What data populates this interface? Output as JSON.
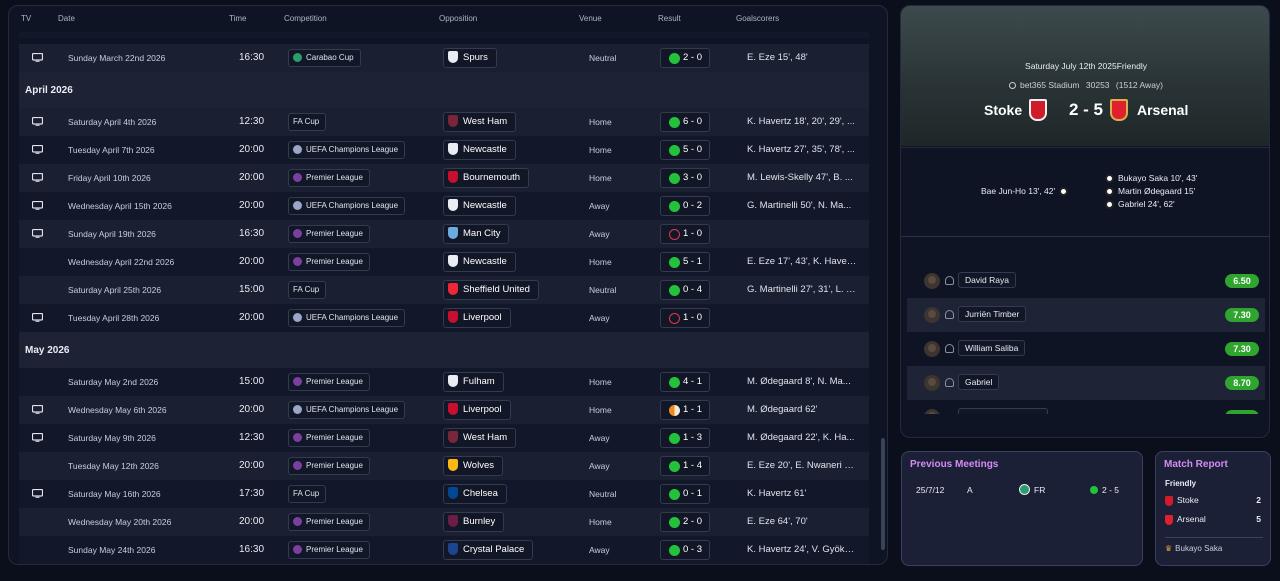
{
  "table": {
    "headers": {
      "tv": "TV",
      "date": "Date",
      "time": "Time",
      "competition": "Competition",
      "opposition": "Opposition",
      "venue": "Venue",
      "result": "Result",
      "goalscorers": "Goalscorers"
    },
    "first_row": {
      "date": "Sunday March 22nd 2026",
      "time": "16:30",
      "competition": "Carabao Cup",
      "opposition": "Spurs",
      "venue": "Neutral",
      "result": "2 - 0",
      "goals": "E. Eze 15', 48'"
    },
    "months": [
      "April 2026",
      "May 2026"
    ],
    "april": [
      {
        "tv": true,
        "date": "Saturday April 4th 2026",
        "time": "12:30",
        "competition": "FA Cup",
        "opposition": "West Ham",
        "venue": "Home",
        "result": "6 - 0",
        "outcome": "win",
        "goals": "K. Havertz 18', 20', 29', ..."
      },
      {
        "tv": true,
        "date": "Tuesday April 7th 2026",
        "time": "20:00",
        "competition": "UEFA Champions League",
        "opposition": "Newcastle",
        "venue": "Home",
        "result": "5 - 0",
        "outcome": "win",
        "goals": "K. Havertz 27', 35', 78', ..."
      },
      {
        "tv": true,
        "date": "Friday April 10th 2026",
        "time": "20:00",
        "competition": "Premier League",
        "opposition": "Bournemouth",
        "venue": "Home",
        "result": "3 - 0",
        "outcome": "win",
        "goals": "M. Lewis-Skelly 47', B. ..."
      },
      {
        "tv": true,
        "date": "Wednesday April 15th 2026",
        "time": "20:00",
        "competition": "UEFA Champions League",
        "opposition": "Newcastle",
        "venue": "Away",
        "result": "0 - 2",
        "outcome": "win",
        "goals": "G. Martinelli 50', N. Ma..."
      },
      {
        "tv": true,
        "date": "Sunday April 19th 2026",
        "time": "16:30",
        "competition": "Premier League",
        "opposition": "Man City",
        "venue": "Away",
        "result": "1 - 0",
        "outcome": "loss",
        "goals": ""
      },
      {
        "tv": false,
        "date": "Wednesday April 22nd 2026",
        "time": "20:00",
        "competition": "Premier League",
        "opposition": "Newcastle",
        "venue": "Home",
        "result": "5 - 1",
        "outcome": "win",
        "goals": "E. Eze 17', 43', K. Havert..."
      },
      {
        "tv": false,
        "date": "Saturday April 25th 2026",
        "time": "15:00",
        "competition": "FA Cup",
        "opposition": "Sheffield United",
        "venue": "Neutral",
        "result": "0 - 4",
        "outcome": "win",
        "goals": "G. Martinelli 27', 31', L. T..."
      },
      {
        "tv": true,
        "date": "Tuesday April 28th 2026",
        "time": "20:00",
        "competition": "UEFA Champions League",
        "opposition": "Liverpool",
        "venue": "Away",
        "result": "1 - 0",
        "outcome": "loss",
        "goals": ""
      }
    ],
    "may": [
      {
        "tv": false,
        "date": "Saturday May 2nd 2026",
        "time": "15:00",
        "competition": "Premier League",
        "opposition": "Fulham",
        "venue": "Home",
        "result": "4 - 1",
        "outcome": "win",
        "goals": "M. Ødegaard 8', N. Ma..."
      },
      {
        "tv": true,
        "date": "Wednesday May 6th 2026",
        "time": "20:00",
        "competition": "UEFA Champions League",
        "opposition": "Liverpool",
        "venue": "Home",
        "result": "1 - 1",
        "outcome": "draw",
        "goals": "M. Ødegaard 62'"
      },
      {
        "tv": true,
        "date": "Saturday May 9th 2026",
        "time": "12:30",
        "competition": "Premier League",
        "opposition": "West Ham",
        "venue": "Away",
        "result": "1 - 3",
        "outcome": "win",
        "goals": "M. Ødegaard 22', K. Ha..."
      },
      {
        "tv": false,
        "date": "Tuesday May 12th 2026",
        "time": "20:00",
        "competition": "Premier League",
        "opposition": "Wolves",
        "venue": "Away",
        "result": "1 - 4",
        "outcome": "win",
        "goals": "E. Eze 20', E. Nwaneri 4..."
      },
      {
        "tv": true,
        "date": "Saturday May 16th 2026",
        "time": "17:30",
        "competition": "FA Cup",
        "opposition": "Chelsea",
        "venue": "Neutral",
        "result": "0 - 1",
        "outcome": "win",
        "goals": "K. Havertz 61'"
      },
      {
        "tv": false,
        "date": "Wednesday May 20th 2026",
        "time": "20:00",
        "competition": "Premier League",
        "opposition": "Burnley",
        "venue": "Home",
        "result": "2 - 0",
        "outcome": "win",
        "goals": "E. Eze 64', 70'"
      },
      {
        "tv": false,
        "date": "Sunday May 24th 2026",
        "time": "16:30",
        "competition": "Premier League",
        "opposition": "Crystal Palace",
        "venue": "Away",
        "result": "0 - 3",
        "outcome": "win",
        "goals": "K. Havertz 24', V. Gyöke..."
      }
    ]
  },
  "match": {
    "meta": "Saturday July 12th 2025Friendly",
    "stadium": "bet365 Stadium",
    "attendance": "30253",
    "away_count": "(1512 Away)",
    "home_team": "Stoke",
    "away_team": "Arsenal",
    "score": "2 - 5",
    "home_scorers": [
      "Bae Jun-Ho 13', 42'"
    ],
    "away_scorers": [
      "Bukayo Saka 10', 43'",
      "Martin Ødegaard 15'",
      "Gabriel 24', 62'"
    ],
    "lineup": [
      {
        "name": "David Raya",
        "rating": "6.50"
      },
      {
        "name": "Jurriën Timber",
        "rating": "7.30"
      },
      {
        "name": "William Saliba",
        "rating": "7.30"
      },
      {
        "name": "Gabriel",
        "rating": "8.70"
      }
    ]
  },
  "previous_meetings": {
    "title": "Previous Meetings",
    "row": {
      "date": "25/7/12",
      "venue": "A",
      "comp": "FR",
      "result": "2 - 5"
    }
  },
  "match_report": {
    "title": "Match Report",
    "subtitle": "Friendly",
    "home": {
      "team": "Stoke",
      "score": "2"
    },
    "away": {
      "team": "Arsenal",
      "score": "5"
    },
    "motm": "Bukayo Saka"
  },
  "colors": {
    "win": "#22c23a",
    "loss": "#e0384a",
    "draw": "#f28a1e",
    "accent": "#d58cf2",
    "rating": "#2fa52f"
  }
}
